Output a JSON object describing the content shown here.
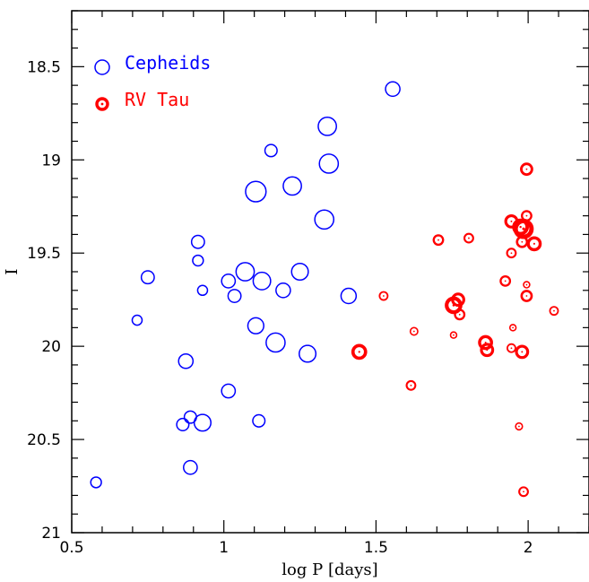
{
  "chart_data": {
    "type": "scatter",
    "xlabel": "log P [days]",
    "ylabel": "I",
    "xlim": [
      0.5,
      2.2
    ],
    "ylim": [
      21.0,
      18.2
    ],
    "y_inverted": true,
    "x_ticks": [
      0.5,
      1,
      1.5,
      2
    ],
    "x_tick_labels": [
      "0.5",
      "1",
      "1.5",
      "2"
    ],
    "y_ticks": [
      18.5,
      19,
      19.5,
      20,
      20.5,
      21
    ],
    "y_tick_labels": [
      "18.5",
      "19",
      "19.5",
      "20",
      "20.5",
      "21"
    ],
    "grid": false,
    "legend_position": "top-left",
    "series": [
      {
        "name": "Cepheids",
        "color": "#0000ff",
        "marker": "open-circle",
        "points": [
          {
            "x": 1.555,
            "y": 18.62,
            "size": 1.2
          },
          {
            "x": 1.34,
            "y": 18.82,
            "size": 1.7
          },
          {
            "x": 1.155,
            "y": 18.95,
            "size": 0.9
          },
          {
            "x": 1.345,
            "y": 19.02,
            "size": 1.8
          },
          {
            "x": 1.225,
            "y": 19.14,
            "size": 1.7
          },
          {
            "x": 1.105,
            "y": 19.17,
            "size": 2.0
          },
          {
            "x": 1.33,
            "y": 19.32,
            "size": 1.8
          },
          {
            "x": 0.915,
            "y": 19.44,
            "size": 1.0
          },
          {
            "x": 0.915,
            "y": 19.54,
            "size": 0.7
          },
          {
            "x": 1.25,
            "y": 19.6,
            "size": 1.5
          },
          {
            "x": 1.07,
            "y": 19.6,
            "size": 1.7
          },
          {
            "x": 0.75,
            "y": 19.63,
            "size": 1.0
          },
          {
            "x": 1.015,
            "y": 19.65,
            "size": 1.1
          },
          {
            "x": 1.125,
            "y": 19.65,
            "size": 1.6
          },
          {
            "x": 0.93,
            "y": 19.7,
            "size": 0.6
          },
          {
            "x": 1.195,
            "y": 19.7,
            "size": 1.2
          },
          {
            "x": 1.035,
            "y": 19.73,
            "size": 1.0
          },
          {
            "x": 1.41,
            "y": 19.73,
            "size": 1.3
          },
          {
            "x": 0.715,
            "y": 19.86,
            "size": 0.6
          },
          {
            "x": 1.105,
            "y": 19.89,
            "size": 1.4
          },
          {
            "x": 1.17,
            "y": 19.98,
            "size": 1.8
          },
          {
            "x": 1.275,
            "y": 20.04,
            "size": 1.5
          },
          {
            "x": 0.875,
            "y": 20.08,
            "size": 1.2
          },
          {
            "x": 1.015,
            "y": 20.24,
            "size": 1.1
          },
          {
            "x": 0.89,
            "y": 20.38,
            "size": 0.9
          },
          {
            "x": 0.865,
            "y": 20.42,
            "size": 0.9
          },
          {
            "x": 0.93,
            "y": 20.41,
            "size": 1.5
          },
          {
            "x": 1.115,
            "y": 20.4,
            "size": 0.9
          },
          {
            "x": 0.89,
            "y": 20.65,
            "size": 1.1
          },
          {
            "x": 0.58,
            "y": 20.73,
            "size": 0.7
          }
        ]
      },
      {
        "name": "RV Tau",
        "color": "#ff0000",
        "marker": "dotted-circle",
        "points": [
          {
            "x": 1.995,
            "y": 19.05,
            "size": 1.1
          },
          {
            "x": 1.995,
            "y": 19.3,
            "size": 0.9
          },
          {
            "x": 1.945,
            "y": 19.33,
            "size": 1.2
          },
          {
            "x": 1.975,
            "y": 19.36,
            "size": 1.5
          },
          {
            "x": 1.985,
            "y": 19.37,
            "size": 1.9
          },
          {
            "x": 1.98,
            "y": 19.44,
            "size": 1.0
          },
          {
            "x": 2.02,
            "y": 19.45,
            "size": 1.3
          },
          {
            "x": 1.705,
            "y": 19.43,
            "size": 0.9
          },
          {
            "x": 1.805,
            "y": 19.42,
            "size": 0.8
          },
          {
            "x": 1.945,
            "y": 19.5,
            "size": 0.8
          },
          {
            "x": 1.925,
            "y": 19.65,
            "size": 0.9
          },
          {
            "x": 1.995,
            "y": 19.67,
            "size": 0.4
          },
          {
            "x": 1.995,
            "y": 19.73,
            "size": 1.0
          },
          {
            "x": 1.525,
            "y": 19.73,
            "size": 0.7
          },
          {
            "x": 1.77,
            "y": 19.75,
            "size": 1.2
          },
          {
            "x": 1.755,
            "y": 19.78,
            "size": 1.6
          },
          {
            "x": 1.775,
            "y": 19.83,
            "size": 0.9
          },
          {
            "x": 2.085,
            "y": 19.81,
            "size": 0.7
          },
          {
            "x": 1.95,
            "y": 19.9,
            "size": 0.4
          },
          {
            "x": 1.625,
            "y": 19.92,
            "size": 0.6
          },
          {
            "x": 1.755,
            "y": 19.94,
            "size": 0.4
          },
          {
            "x": 1.86,
            "y": 19.98,
            "size": 1.3
          },
          {
            "x": 1.865,
            "y": 20.02,
            "size": 1.2
          },
          {
            "x": 1.945,
            "y": 20.01,
            "size": 0.7
          },
          {
            "x": 1.98,
            "y": 20.03,
            "size": 1.2
          },
          {
            "x": 1.445,
            "y": 20.03,
            "size": 1.4
          },
          {
            "x": 1.615,
            "y": 20.21,
            "size": 0.8
          },
          {
            "x": 1.97,
            "y": 20.43,
            "size": 0.5
          },
          {
            "x": 1.985,
            "y": 20.78,
            "size": 0.8
          }
        ]
      }
    ]
  }
}
